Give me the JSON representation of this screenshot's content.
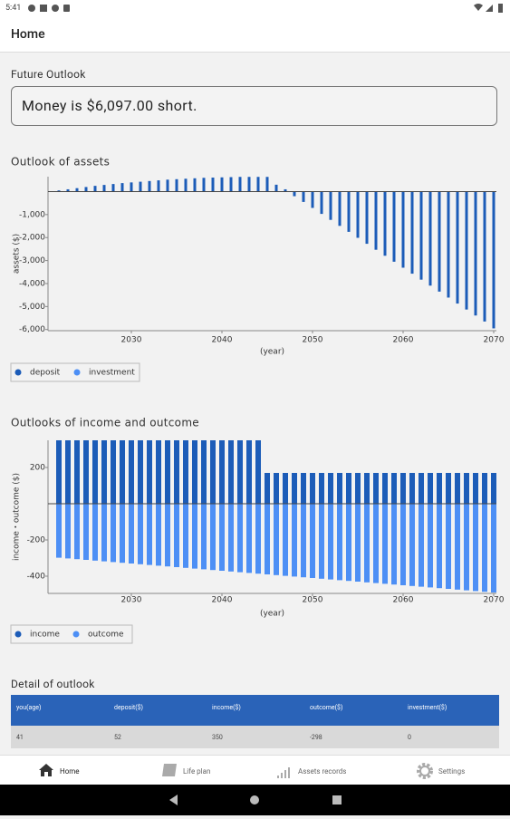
{
  "status_bar": {
    "time": "5:41"
  },
  "header": {
    "title": "Home"
  },
  "future_outlook": {
    "label": "Future Outlook",
    "message": "Money is $6,097.00 short."
  },
  "chart_data": [
    {
      "type": "bar",
      "title": "Outlook of assets",
      "x_label": "(year)",
      "y_label": "assets ($)",
      "x": [
        2022,
        2023,
        2024,
        2025,
        2026,
        2027,
        2028,
        2029,
        2030,
        2031,
        2032,
        2033,
        2034,
        2035,
        2036,
        2037,
        2038,
        2039,
        2040,
        2041,
        2042,
        2043,
        2044,
        2045,
        2046,
        2047,
        2048,
        2049,
        2050,
        2051,
        2052,
        2053,
        2054,
        2055,
        2056,
        2057,
        2058,
        2059,
        2060,
        2061,
        2062,
        2063,
        2064,
        2065,
        2066,
        2067,
        2068,
        2069,
        2070
      ],
      "series": [
        {
          "name": "deposit",
          "color": "#1c5cb8",
          "values": [
            52,
            100,
            150,
            200,
            250,
            290,
            330,
            370,
            400,
            430,
            460,
            490,
            520,
            540,
            560,
            580,
            600,
            610,
            620,
            630,
            640,
            640,
            640,
            640,
            300,
            100,
            -200,
            -450,
            -710,
            -970,
            -1230,
            -1490,
            -1750,
            -2010,
            -2270,
            -2530,
            -2790,
            -3050,
            -3310,
            -3570,
            -3830,
            -4090,
            -4350,
            -4610,
            -4870,
            -5130,
            -5390,
            -5650,
            -5950
          ]
        },
        {
          "name": "investment",
          "color": "#4d8ff5",
          "values": [
            0,
            0,
            0,
            0,
            0,
            0,
            0,
            0,
            0,
            0,
            0,
            0,
            0,
            0,
            0,
            0,
            0,
            0,
            0,
            0,
            0,
            0,
            0,
            0,
            0,
            0,
            0,
            0,
            0,
            0,
            0,
            0,
            0,
            0,
            0,
            0,
            0,
            0,
            0,
            0,
            0,
            0,
            0,
            0,
            0,
            0,
            0,
            0,
            0
          ]
        }
      ],
      "xlim": [
        2020.8,
        2070.3
      ],
      "xticks": [
        2030,
        2040,
        2050,
        2060,
        2070
      ],
      "ylim": [
        -6050,
        650
      ],
      "yticks": [
        {
          "value": -1000,
          "label": "-1,000"
        },
        {
          "value": -2000,
          "label": "-2,000"
        },
        {
          "value": -3000,
          "label": "-3,000"
        },
        {
          "value": -4000,
          "label": "-4,000"
        },
        {
          "value": -5000,
          "label": "-5,000"
        },
        {
          "value": -6000,
          "label": "-6,000"
        }
      ],
      "legend": "bottom-left"
    },
    {
      "type": "bar",
      "title": "Outlooks of income and outcome",
      "x_label": "(year)",
      "y_label": "income・outcome ($)",
      "x": [
        2022,
        2023,
        2024,
        2025,
        2026,
        2027,
        2028,
        2029,
        2030,
        2031,
        2032,
        2033,
        2034,
        2035,
        2036,
        2037,
        2038,
        2039,
        2040,
        2041,
        2042,
        2043,
        2044,
        2045,
        2046,
        2047,
        2048,
        2049,
        2050,
        2051,
        2052,
        2053,
        2054,
        2055,
        2056,
        2057,
        2058,
        2059,
        2060,
        2061,
        2062,
        2063,
        2064,
        2065,
        2066,
        2067,
        2068,
        2069,
        2070
      ],
      "series": [
        {
          "name": "income",
          "color": "#1c5cb8",
          "values": [
            350,
            350,
            350,
            350,
            350,
            350,
            350,
            350,
            350,
            350,
            350,
            350,
            350,
            350,
            350,
            350,
            350,
            350,
            350,
            350,
            350,
            350,
            350,
            170,
            170,
            170,
            170,
            170,
            170,
            170,
            170,
            170,
            170,
            170,
            170,
            170,
            170,
            170,
            170,
            170,
            170,
            170,
            170,
            170,
            170,
            170,
            170,
            170,
            170
          ]
        },
        {
          "name": "outcome",
          "color": "#4d8ff5",
          "values": [
            -298,
            -302,
            -306,
            -310,
            -314,
            -318,
            -322,
            -326,
            -330,
            -334,
            -338,
            -342,
            -346,
            -350,
            -354,
            -358,
            -362,
            -366,
            -370,
            -374,
            -378,
            -382,
            -386,
            -390,
            -394,
            -398,
            -402,
            -406,
            -410,
            -414,
            -418,
            -422,
            -426,
            -430,
            -434,
            -438,
            -442,
            -446,
            -450,
            -454,
            -458,
            -462,
            -466,
            -470,
            -474,
            -478,
            -482,
            -486,
            -490
          ]
        }
      ],
      "xlim": [
        2020.8,
        2070.3
      ],
      "xticks": [
        2030,
        2040,
        2050,
        2060,
        2070
      ],
      "ylim": [
        -495,
        350
      ],
      "yticks": [
        200,
        -200,
        -400
      ],
      "legend": "bottom-left"
    }
  ],
  "detail": {
    "title": "Detail of outlook",
    "table": {
      "headers": [
        "you(age)",
        "deposit($)",
        "income($)",
        "outcome($)",
        "investment($)"
      ],
      "rows": [
        [
          41,
          52,
          350,
          -298,
          0
        ]
      ]
    }
  },
  "nav": {
    "items": [
      "Home",
      "Life plan",
      "Assets records",
      "Settings"
    ]
  }
}
